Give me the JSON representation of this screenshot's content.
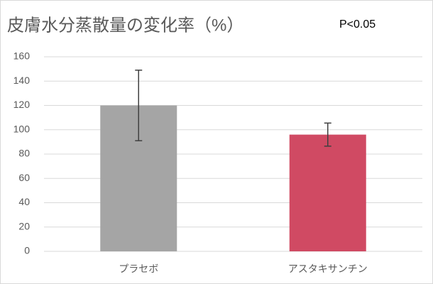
{
  "chart_data": {
    "type": "bar",
    "title": "皮膚水分蒸散量の変化率（%）",
    "annotation": "P<0.05",
    "categories": [
      "プラセボ",
      "アスタキサンチン"
    ],
    "values": [
      120,
      96
    ],
    "errors": [
      29,
      9.5
    ],
    "colors": [
      "#a5a5a5",
      "#d04a63"
    ],
    "ylim": [
      0,
      160
    ],
    "yticks": [
      0,
      20,
      40,
      60,
      80,
      100,
      120,
      140,
      160
    ],
    "grid": true
  }
}
